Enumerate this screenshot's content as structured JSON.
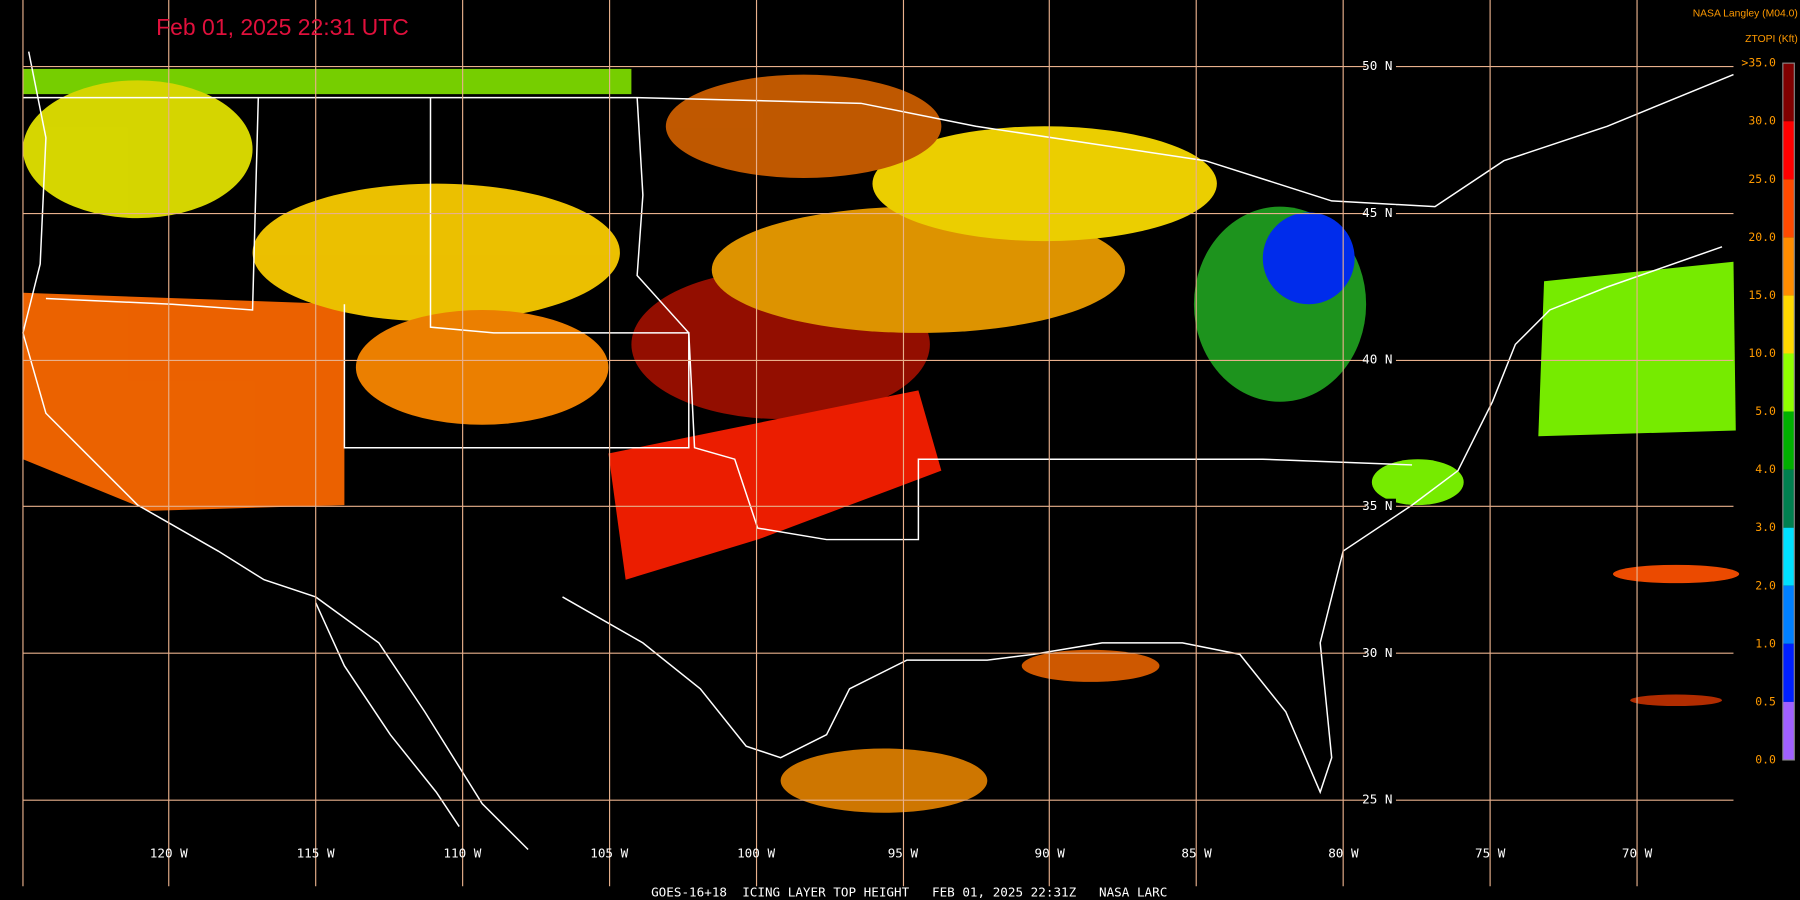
{
  "header": {
    "timestamp": "Feb 01, 2025 22:31 UTC",
    "source": "NASA Langley (M04.0)",
    "product": "ZTOPI (Kft)",
    "footer": "GOES-16+18  ICING LAYER TOP HEIGHT   FEB 01, 2025 22:31Z   NASA LARC"
  },
  "map": {
    "latitude_labels": [
      "50 N",
      "45 N",
      "40 N",
      "35 N",
      "30 N",
      "25 N"
    ],
    "longitude_labels": [
      "120 W",
      "115 W",
      "110 W",
      "105 W",
      "100 W",
      "95 W",
      "90 W",
      "85 W",
      "80 W",
      "75 W",
      "70 W"
    ]
  },
  "colorbar": {
    "labels": [
      ">35.0",
      "30.0",
      "25.0",
      "20.0",
      "15.0",
      "10.0",
      "5.0",
      "4.0",
      "3.0",
      "2.0",
      "1.0",
      "0.5",
      "0.0"
    ],
    "colors": [
      "#800000",
      "#ff0000",
      "#ff4a00",
      "#ff8c00",
      "#ffd800",
      "#90ff00",
      "#00b000",
      "#008050",
      "#00e0ff",
      "#0080ff",
      "#0020ff",
      "#a060ff"
    ]
  }
}
